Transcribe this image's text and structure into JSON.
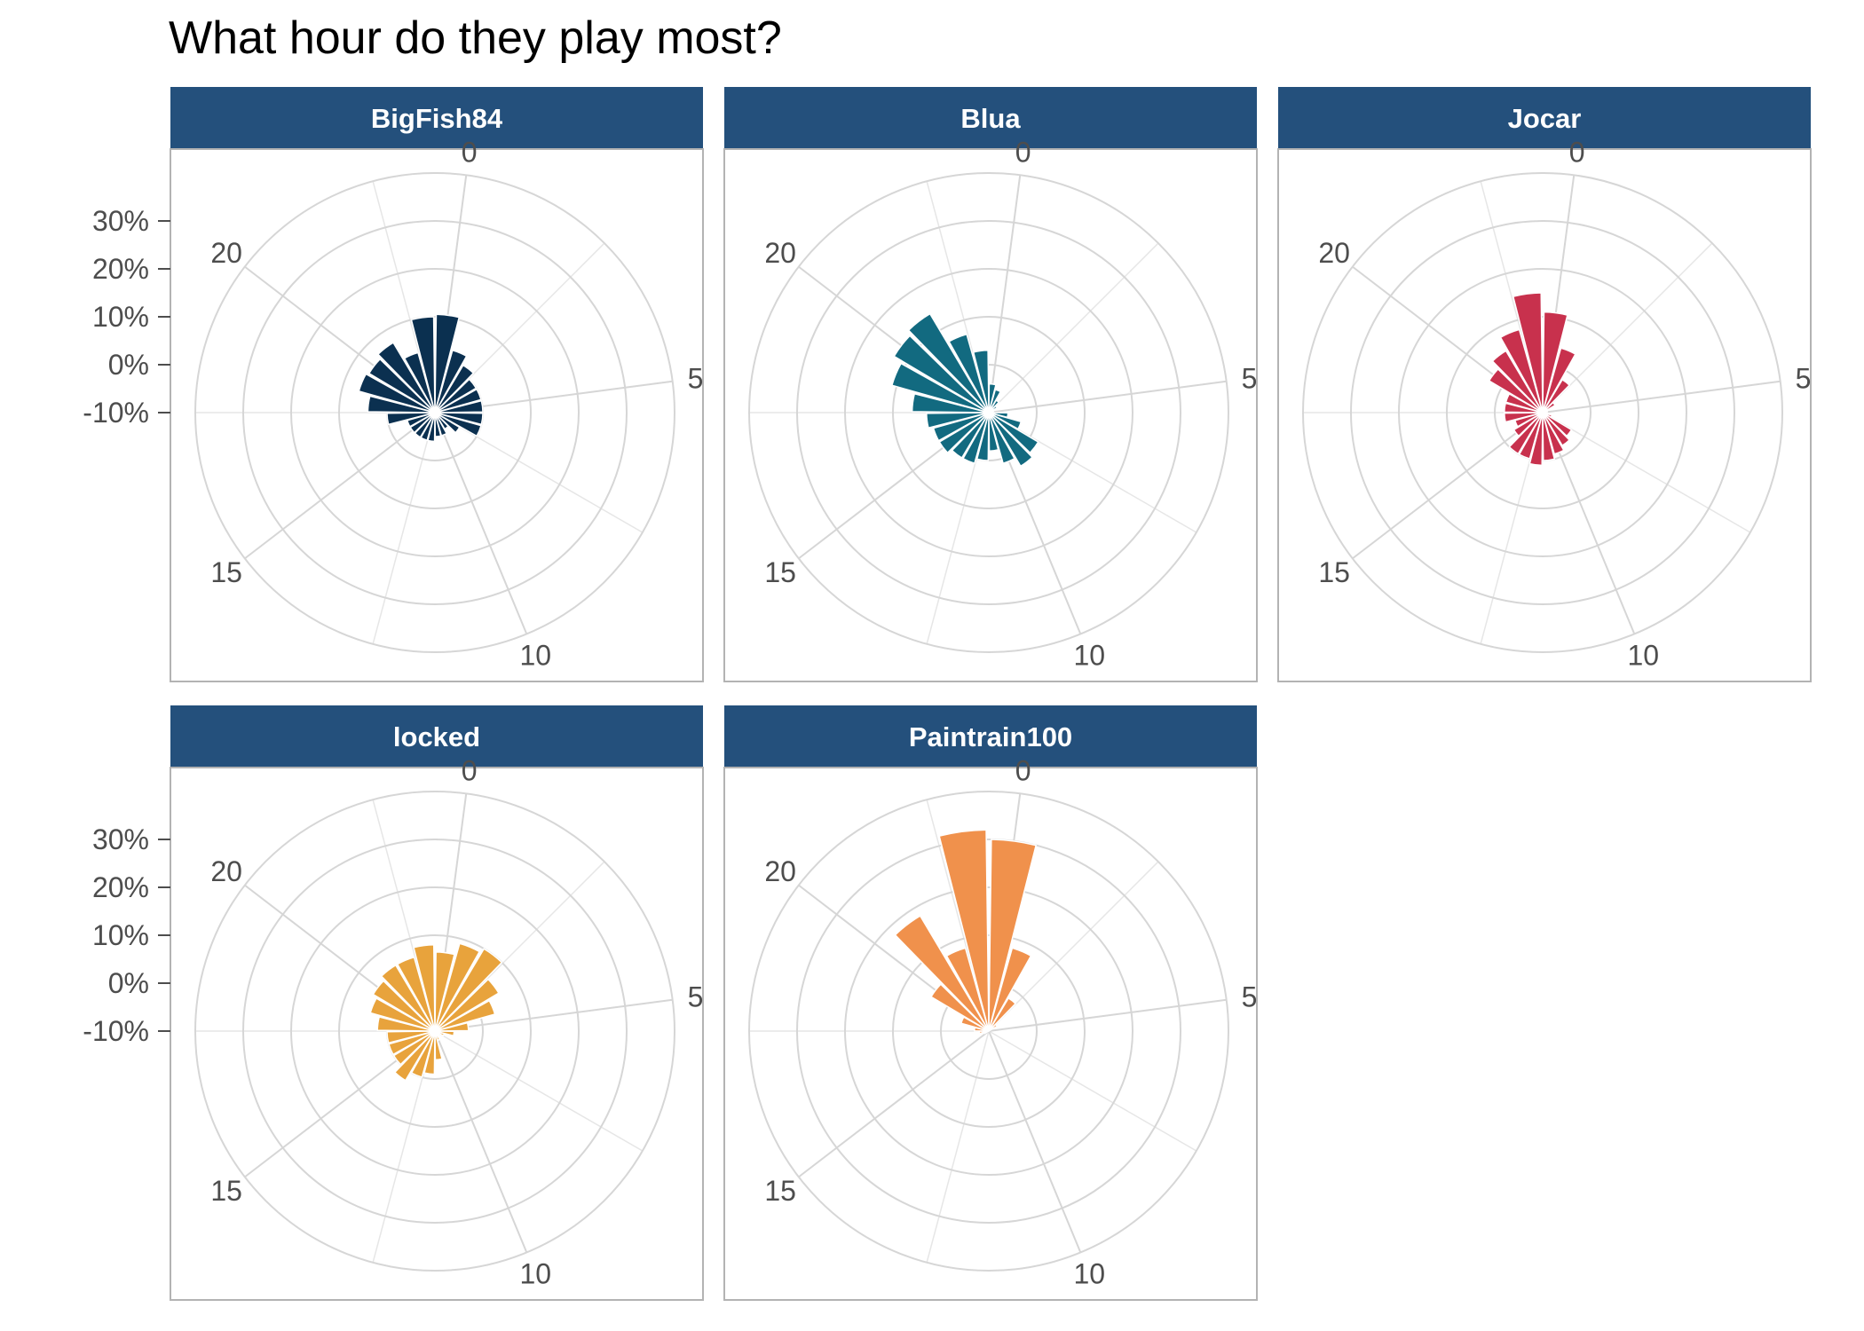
{
  "chart_data": {
    "type": "bar",
    "coord": "polar",
    "title": "What hour do they play most?",
    "xlabel": "",
    "ylabel": "",
    "hours": [
      0,
      1,
      2,
      3,
      4,
      5,
      6,
      7,
      8,
      9,
      10,
      11,
      12,
      13,
      14,
      15,
      16,
      17,
      18,
      19,
      20,
      21,
      22,
      23
    ],
    "hour_tick_labels": [
      "0",
      "5",
      "10",
      "15",
      "20"
    ],
    "y_tick_labels": [
      "-10%",
      "0%",
      "10%",
      "20%",
      "30%"
    ],
    "y_ticks": [
      -10,
      0,
      10,
      20,
      30
    ],
    "ylim": [
      -10,
      40
    ],
    "facets": [
      {
        "name": "BigFish84",
        "color": "#0b3050",
        "values": [
          10.5,
          3.5,
          1.5,
          0,
          0,
          0,
          0,
          0,
          -4,
          -6,
          -5,
          -5,
          -4,
          -4,
          -4,
          -4,
          -4,
          0,
          4,
          6.5,
          6,
          7,
          3,
          10
        ]
      },
      {
        "name": "Blua",
        "color": "#126a80",
        "values": [
          -4,
          -5,
          -7,
          -8,
          -9,
          -10,
          -6,
          -3,
          2,
          3,
          1,
          -2,
          0,
          1,
          1,
          2,
          2,
          3,
          6,
          11,
          13,
          14,
          7,
          3
        ]
      },
      {
        "name": "Jocar",
        "color": "#c8314d",
        "values": [
          11,
          4,
          -2,
          -7,
          -9,
          -10,
          -9,
          -8,
          -3,
          -2,
          -1,
          0,
          1,
          0,
          0,
          -3,
          -4,
          -2,
          -2,
          -2,
          3,
          5,
          8,
          15
        ]
      },
      {
        "name": "locked",
        "color": "#e8a33c",
        "values": [
          6.5,
          9,
          10,
          5.5,
          3,
          -3,
          -6,
          -8,
          -9,
          -9,
          -8,
          -4,
          -1,
          0,
          2,
          0,
          0,
          0,
          2,
          4,
          5,
          6,
          6,
          8
        ]
      },
      {
        "name": "Paintrain100",
        "color": "#f0914c",
        "values": [
          30,
          8,
          -2,
          -8,
          -10,
          -10,
          -10,
          -10,
          -10,
          -10,
          -10,
          -10,
          -10,
          -10,
          -10,
          -10,
          -9,
          -8,
          -7,
          -4,
          4,
          18,
          8,
          32
        ]
      }
    ]
  }
}
